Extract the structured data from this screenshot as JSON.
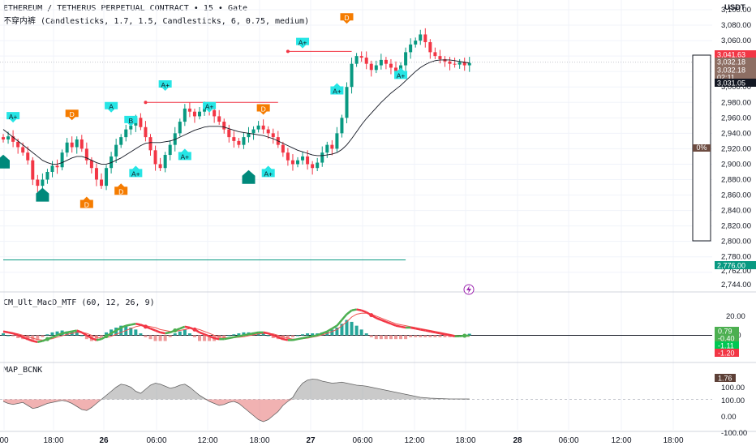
{
  "header": {
    "title": "ETHEREUM / TETHERUS PERPETUAL CONTRACT • 15 • Gate",
    "indicator_line": "不穿内裤 (Candlesticks, 1.7, 1.5, Candlesticks, 6, 0.75, medium)",
    "currency": "USDT",
    "flash_icon": "lightning-icon"
  },
  "chart_data": [
    {
      "type": "candlestick",
      "title": "ETHEREUM / TETHERUS PERPETUAL CONTRACT • 15 • Gate",
      "ylabel": "USDT",
      "ylim": [
        2740,
        3110
      ],
      "y_ticks": [
        "3,100.00",
        "3,080.00",
        "3,060.00",
        "3,040.00",
        "3,020.00",
        "3,000.00",
        "2,980.00",
        "2,960.00",
        "2,940.00",
        "2,920.00",
        "2,900.00",
        "2,880.00",
        "2,860.00",
        "2,840.00",
        "2,820.00",
        "2,800.00",
        "2,780.00",
        "2,762.00",
        "2,744.00"
      ],
      "price_labels": [
        {
          "text": "3,041.63",
          "color": "#f23645"
        },
        {
          "text": "3,032.18",
          "color": "#8d6e63"
        },
        {
          "text": "3,032.18",
          "color": "#8d6e63"
        },
        {
          "text": "02:11",
          "color": "#8d6e63"
        },
        {
          "text": "3,031.05",
          "color": "#131722"
        },
        {
          "text": "2,776.00",
          "color": "#089981"
        }
      ],
      "side_gauge_label": "0%",
      "series": [
        {
          "name": "close",
          "values": [
            2932,
            2936,
            2929,
            2922,
            2915,
            2905,
            2880,
            2872,
            2880,
            2890,
            2898,
            2896,
            2915,
            2928,
            2922,
            2932,
            2920,
            2905,
            2895,
            2880,
            2872,
            2895,
            2910,
            2925,
            2935,
            2945,
            2950,
            2960,
            2948,
            2935,
            2918,
            2900,
            2895,
            2912,
            2925,
            2940,
            2955,
            2972,
            2968,
            2962,
            2968,
            2973,
            2970,
            2962,
            2955,
            2945,
            2935,
            2930,
            2925,
            2935,
            2940,
            2945,
            2950,
            2945,
            2940,
            2935,
            2925,
            2915,
            2905,
            2900,
            2905,
            2910,
            2900,
            2895,
            2902,
            2915,
            2925,
            2920,
            2940,
            2960,
            3000,
            3030,
            3040,
            3038,
            3030,
            3022,
            3028,
            3035,
            3030,
            3025,
            3020,
            3028,
            3045,
            3055,
            3060,
            3068,
            3058,
            3045,
            3040,
            3036,
            3033,
            3030,
            3029,
            3032,
            3028,
            3031
          ]
        },
        {
          "name": "moving_average",
          "values": [
            2945,
            2940,
            2935,
            2930,
            2925,
            2920,
            2915,
            2910,
            2905,
            2902,
            2900,
            2900,
            2902,
            2905,
            2908,
            2910,
            2910,
            2908,
            2905,
            2902,
            2900,
            2900,
            2902,
            2905,
            2908,
            2912,
            2916,
            2920,
            2924,
            2927,
            2928,
            2928,
            2928,
            2929,
            2930,
            2932,
            2935,
            2938,
            2941,
            2944,
            2946,
            2948,
            2949,
            2949,
            2949,
            2948,
            2946,
            2944,
            2942,
            2941,
            2940,
            2939,
            2938,
            2937,
            2935,
            2933,
            2930,
            2927,
            2924,
            2921,
            2918,
            2916,
            2914,
            2912,
            2911,
            2911,
            2912,
            2913,
            2915,
            2919,
            2925,
            2933,
            2942,
            2951,
            2959,
            2966,
            2973,
            2980,
            2986,
            2992,
            2997,
            3002,
            3008,
            3014,
            3020,
            3025,
            3029,
            3032,
            3034,
            3035,
            3035,
            3035,
            3034,
            3033,
            3032,
            3031
          ]
        }
      ],
      "signals": [
        {
          "label": "A+",
          "kind": "bull",
          "color": "#26e5e5",
          "x": 2,
          "price": 2955
        },
        {
          "label": "A",
          "kind": "bull",
          "color": "#26e5e5",
          "x": 22,
          "price": 2968
        },
        {
          "label": "B",
          "kind": "bull",
          "color": "#26e5e5",
          "x": 26,
          "price": 2950
        },
        {
          "label": "A+",
          "kind": "bull",
          "color": "#26e5e5",
          "x": 33,
          "price": 2996
        },
        {
          "label": "A+",
          "kind": "bull",
          "color": "#26e5e5",
          "x": 42,
          "price": 2968
        },
        {
          "label": "A+",
          "kind": "bear",
          "color": "#26e5e5",
          "x": 27,
          "price": 2898
        },
        {
          "label": "A+",
          "kind": "bear",
          "color": "#26e5e5",
          "x": 37,
          "price": 2920
        },
        {
          "label": "A+",
          "kind": "bear",
          "color": "#26e5e5",
          "x": 54,
          "price": 2898
        },
        {
          "label": "A+",
          "kind": "bull",
          "color": "#26e5e5",
          "x": 61,
          "price": 3051
        },
        {
          "label": "A+",
          "kind": "bear",
          "color": "#26e5e5",
          "x": 68,
          "price": 3005
        },
        {
          "label": "A+",
          "kind": "bear",
          "color": "#26e5e5",
          "x": 81,
          "price": 3025
        },
        {
          "label": "D",
          "kind": "bull",
          "color": "#f57c00",
          "x": 14,
          "price": 2958
        },
        {
          "label": "D",
          "kind": "bear",
          "color": "#f57c00",
          "x": 17,
          "price": 2858
        },
        {
          "label": "D",
          "kind": "bear",
          "color": "#f57c00",
          "x": 24,
          "price": 2875
        },
        {
          "label": "D",
          "kind": "bull",
          "color": "#f57c00",
          "x": 53,
          "price": 2965
        },
        {
          "label": "D",
          "kind": "bull",
          "color": "#f57c00",
          "x": 70,
          "price": 3083
        },
        {
          "label": "",
          "kind": "dn",
          "color": "#00897b",
          "x": 0,
          "price": 2905
        },
        {
          "label": "",
          "kind": "dn",
          "color": "#00897b",
          "x": 8,
          "price": 2862
        },
        {
          "label": "",
          "kind": "dn",
          "color": "#00897b",
          "x": 50,
          "price": 2885
        }
      ],
      "levels": [
        {
          "price": 2980,
          "from": 29,
          "to": 56,
          "color": "#f23645"
        },
        {
          "price": 3046,
          "from": 58,
          "to": 71,
          "color": "#f23645"
        },
        {
          "price": 2776,
          "from": 0,
          "to": 82,
          "color": "#089981"
        }
      ]
    },
    {
      "type": "line",
      "title": "CM_Ult_MacD_MTF (60, 12, 26, 9)",
      "ylim": [
        -25,
        30
      ],
      "y_ticks": [
        "20.00",
        "0.00"
      ],
      "value_labels": [
        {
          "text": "0.79",
          "color": "#4caf50"
        },
        {
          "text": "-0.40",
          "color": "#4caf50"
        },
        {
          "text": "-1.11",
          "color": "#00c853"
        },
        {
          "text": "-1.20",
          "color": "#f23645"
        }
      ],
      "series": [
        {
          "name": "macd",
          "values": [
            4,
            3,
            2,
            0,
            -2,
            -4,
            -6,
            -7,
            -6,
            -4,
            -2,
            0,
            2,
            3,
            4,
            5,
            3,
            0,
            -3,
            -5,
            -4,
            -1,
            2,
            5,
            8,
            10,
            11,
            12,
            11,
            9,
            7,
            5,
            3,
            2,
            3,
            5,
            7,
            9,
            8,
            6,
            3,
            1,
            -1,
            -3,
            -4,
            -4,
            -3,
            -2,
            -1,
            0,
            1,
            2,
            3,
            3,
            2,
            0,
            -2,
            -4,
            -5,
            -5,
            -4,
            -3,
            -2,
            -1,
            0,
            2,
            4,
            7,
            10,
            16,
            22,
            26,
            27,
            26,
            24,
            21,
            18,
            16,
            14,
            12,
            10,
            9,
            8,
            8,
            7,
            6,
            5,
            4,
            3,
            2,
            1,
            0,
            -1,
            -1,
            -0.5,
            -0.4
          ]
        },
        {
          "name": "signal",
          "values": [
            3,
            3,
            2.5,
            1.5,
            0,
            -1.5,
            -3,
            -4.5,
            -5,
            -4.5,
            -3.5,
            -2,
            -0.5,
            1,
            2,
            3,
            3,
            2,
            0,
            -2,
            -3,
            -2.5,
            -1,
            1,
            3,
            5,
            7,
            9,
            10,
            10,
            9,
            8,
            6,
            5,
            4,
            4,
            5,
            6,
            7,
            7,
            6,
            4,
            2,
            0,
            -1.5,
            -2.5,
            -3,
            -2.5,
            -2,
            -1.5,
            -0.5,
            0.5,
            1.5,
            2,
            2,
            1.5,
            0,
            -1.5,
            -3,
            -4,
            -4,
            -3.5,
            -3,
            -2,
            -1,
            0.5,
            2,
            4,
            6,
            10,
            14,
            19,
            22,
            23,
            23,
            22,
            20,
            18,
            16,
            14,
            12,
            11,
            10,
            9,
            8,
            7,
            6,
            5,
            4,
            3,
            2,
            1,
            0,
            -0.5,
            -0.8,
            -1.2
          ]
        }
      ]
    },
    {
      "type": "area",
      "title": "MAP_BCNK",
      "ylim": [
        -150,
        150
      ],
      "y_ticks": [
        "100.00",
        "0.00",
        "-100.00"
      ],
      "value_labels": [
        {
          "text": "1.76",
          "color": "#5d4037"
        }
      ],
      "values": [
        -10,
        -20,
        -25,
        -20,
        -15,
        -30,
        -45,
        -40,
        -30,
        -20,
        -15,
        -10,
        -5,
        -10,
        -20,
        -35,
        -50,
        -55,
        -40,
        -20,
        0,
        20,
        40,
        60,
        75,
        70,
        60,
        40,
        30,
        50,
        70,
        80,
        75,
        65,
        55,
        60,
        70,
        75,
        60,
        40,
        20,
        5,
        -10,
        -20,
        -30,
        -25,
        -15,
        -10,
        -20,
        -40,
        -60,
        -80,
        -100,
        -110,
        -100,
        -80,
        -60,
        -30,
        -10,
        10,
        50,
        80,
        95,
        100,
        98,
        90,
        85,
        80,
        82,
        85,
        80,
        75,
        70,
        68,
        65,
        60,
        55,
        50,
        45,
        40,
        35,
        30,
        25,
        20,
        15,
        10,
        8,
        6,
        5,
        4,
        3,
        2,
        2,
        2,
        1.8,
        1.76
      ]
    }
  ],
  "x_axis": {
    "ticks": [
      {
        "label": "00",
        "bold": false
      },
      {
        "label": "18:00",
        "bold": false
      },
      {
        "label": "26",
        "bold": true
      },
      {
        "label": "06:00",
        "bold": false
      },
      {
        "label": "12:00",
        "bold": false
      },
      {
        "label": "18:00",
        "bold": false
      },
      {
        "label": "27",
        "bold": true
      },
      {
        "label": "06:00",
        "bold": false
      },
      {
        "label": "12:00",
        "bold": false
      },
      {
        "label": "18:00",
        "bold": false
      },
      {
        "label": "28",
        "bold": true
      },
      {
        "label": "06:00",
        "bold": false
      },
      {
        "label": "12:00",
        "bold": false
      },
      {
        "label": "18:00",
        "bold": false
      }
    ]
  },
  "colors": {
    "up": "#089981",
    "down": "#f23645",
    "ma": "#131722",
    "macd_up": "#4caf50",
    "macd_down": "#f23645"
  }
}
